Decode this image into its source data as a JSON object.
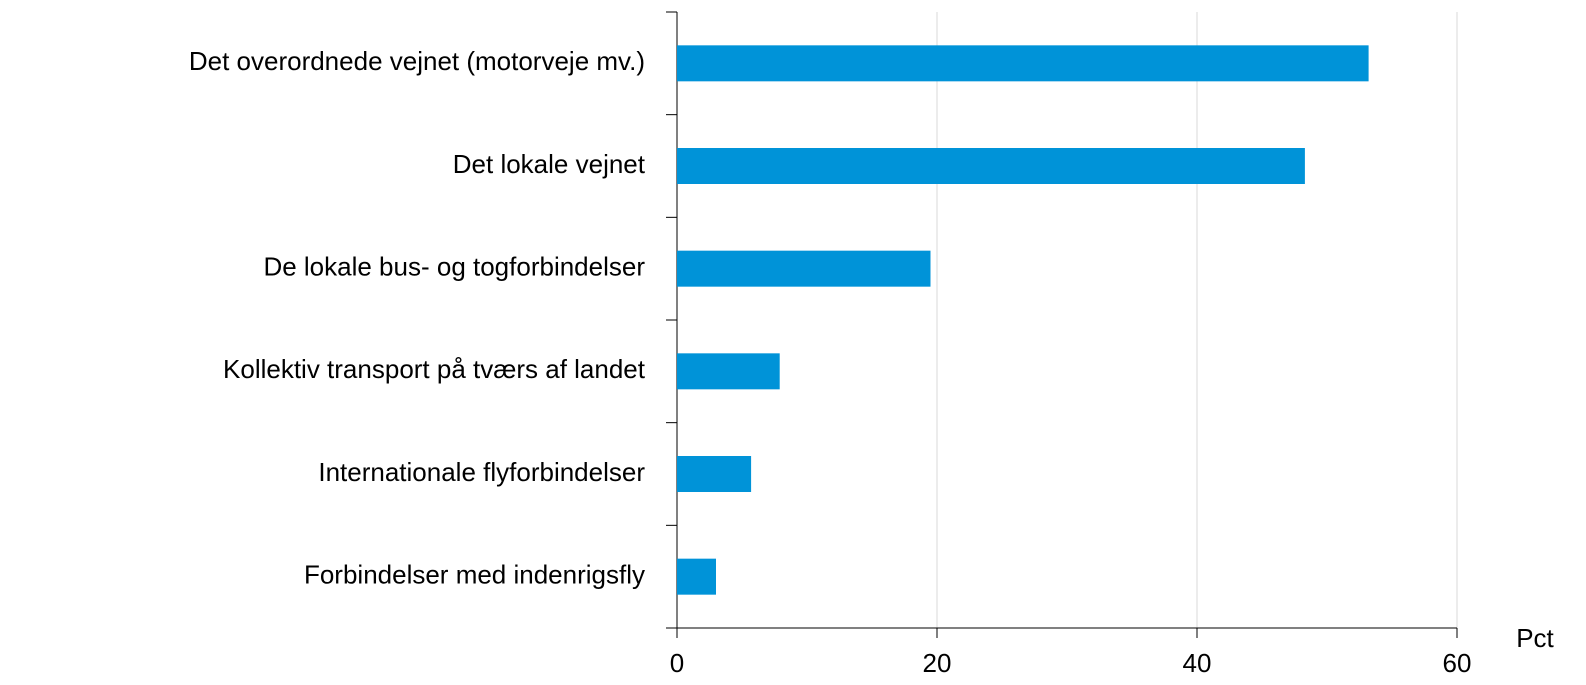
{
  "chart_data": {
    "type": "bar",
    "orientation": "horizontal",
    "categories": [
      "Det overordnede vejnet (motorveje mv.)",
      "Det lokale vejnet",
      "De lokale bus- og togforbindelser",
      "Kollektiv transport på tværs af landet",
      "Internationale flyforbindelser",
      "Forbindelser med indenrigsfly"
    ],
    "values": [
      53.2,
      48.3,
      19.5,
      7.9,
      5.7,
      3.0
    ],
    "color": "#0093d8",
    "x_label": "Pct",
    "xlim": [
      0,
      60
    ],
    "xticks": [
      0,
      20,
      40,
      60
    ],
    "grid": true
  }
}
